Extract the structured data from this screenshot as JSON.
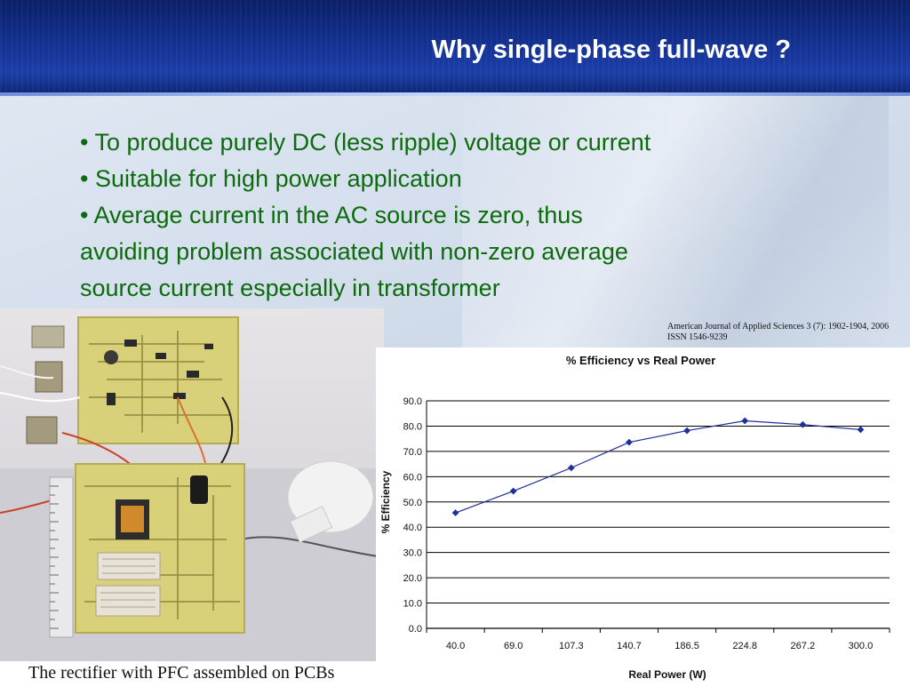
{
  "slide": {
    "title": "Why single-phase full-wave ?",
    "bullets": [
      "• To produce purely DC (less ripple) voltage or current",
      "• Suitable for high power application",
      "• Average current in the AC source is zero, thus",
      "avoiding problem associated with non-zero average",
      "source current especially in transformer"
    ],
    "citation": {
      "line1": "American Journal of Applied Sciences 3 (7): 1902-1904, 2006",
      "line2": "ISSN 1546-9239"
    },
    "photo_caption": "The rectifier with PFC assembled on PCBs",
    "colors": {
      "header": "#16359a",
      "bullet_text": "#0c6b0c",
      "series": "#1f2f9a"
    }
  },
  "chart_data": {
    "type": "line",
    "title": "% Efficiency vs Real Power",
    "xlabel": "Real Power (W)",
    "ylabel": "% Efficiency",
    "categories": [
      "40.0",
      "69.0",
      "107.3",
      "140.7",
      "186.5",
      "224.8",
      "267.2",
      "300.0"
    ],
    "values": [
      45.7,
      54.3,
      63.5,
      73.6,
      78.2,
      82.1,
      80.6,
      78.6
    ],
    "yticks": [
      "0.0",
      "10.0",
      "20.0",
      "30.0",
      "40.0",
      "50.0",
      "60.0",
      "70.0",
      "80.0",
      "90.0"
    ],
    "ylim": [
      0,
      90
    ],
    "grid": true,
    "legend": "none"
  }
}
